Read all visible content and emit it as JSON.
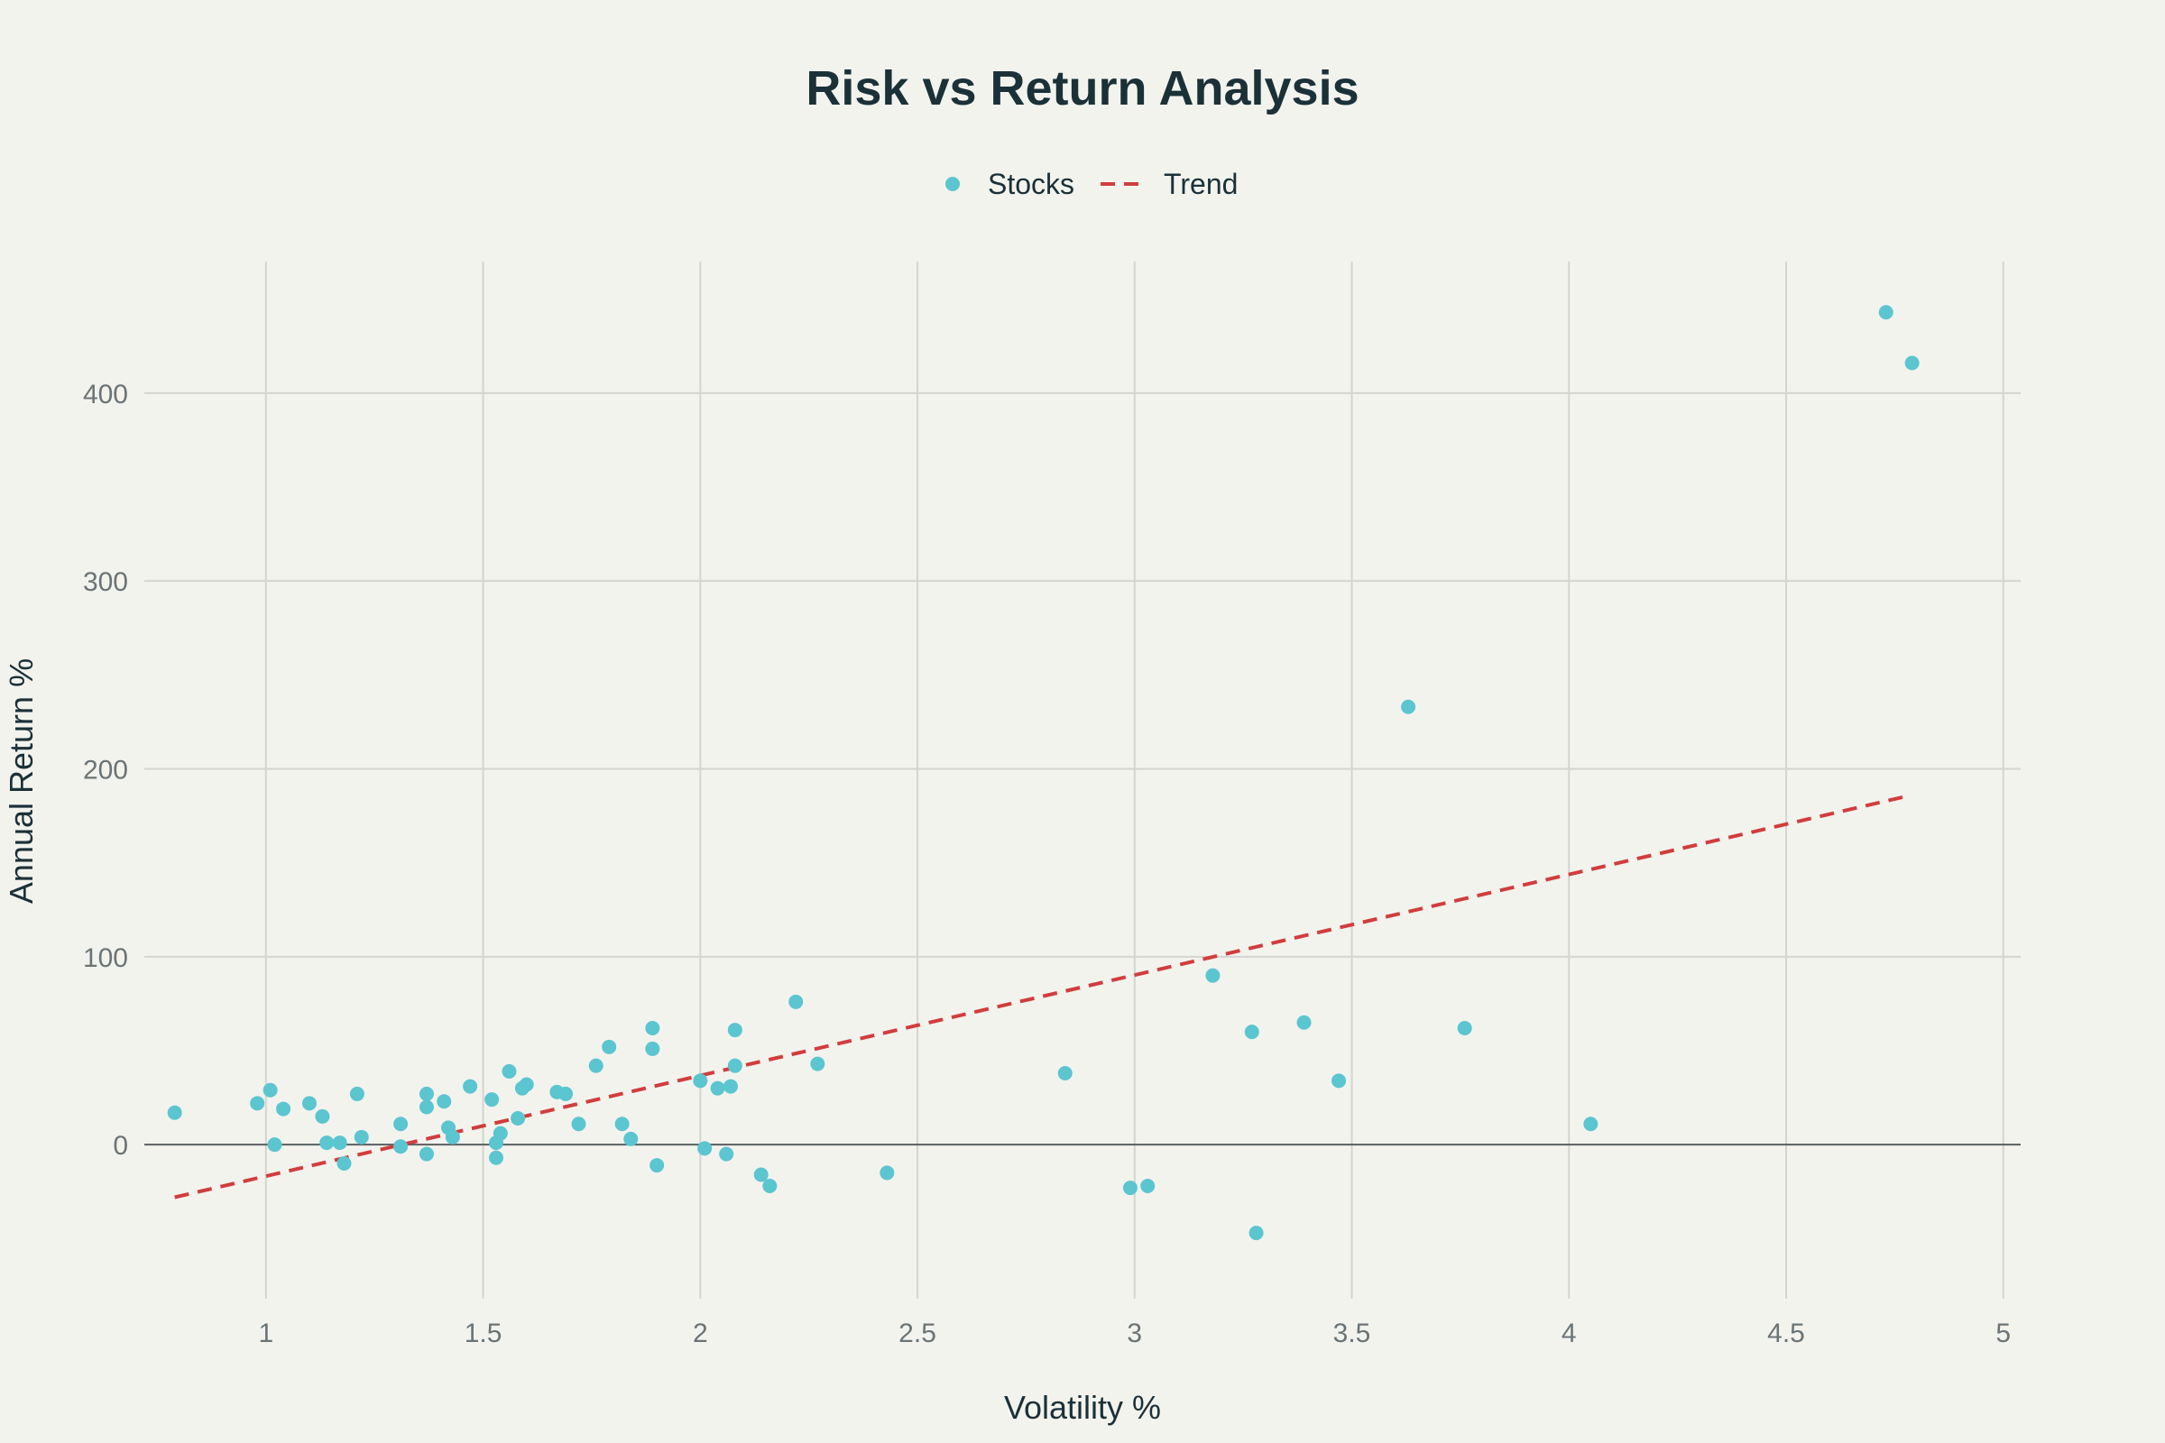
{
  "chart_data": {
    "type": "scatter",
    "title": "Risk vs Return Analysis",
    "xlabel": "Volatility %",
    "ylabel": "Annual Return %",
    "xlim": [
      0.72,
      5.04
    ],
    "ylim": [
      -82,
      470
    ],
    "xticks": [
      1,
      1.5,
      2,
      2.5,
      3,
      3.5,
      4,
      4.5,
      5
    ],
    "yticks": [
      0,
      100,
      200,
      300,
      400
    ],
    "grid": true,
    "legend_position": "top-center",
    "series": [
      {
        "name": "Stocks",
        "mode": "markers",
        "color": "#5bc5d0",
        "points": [
          [
            0.79,
            17
          ],
          [
            0.98,
            22
          ],
          [
            1.01,
            29
          ],
          [
            1.02,
            0
          ],
          [
            1.04,
            19
          ],
          [
            1.1,
            22
          ],
          [
            1.13,
            15
          ],
          [
            1.14,
            1
          ],
          [
            1.17,
            1
          ],
          [
            1.18,
            -10
          ],
          [
            1.21,
            27
          ],
          [
            1.22,
            4
          ],
          [
            1.31,
            11
          ],
          [
            1.31,
            -1
          ],
          [
            1.37,
            27
          ],
          [
            1.37,
            20
          ],
          [
            1.37,
            -5
          ],
          [
            1.41,
            23
          ],
          [
            1.42,
            9
          ],
          [
            1.43,
            4
          ],
          [
            1.47,
            31
          ],
          [
            1.52,
            24
          ],
          [
            1.53,
            1
          ],
          [
            1.53,
            -7
          ],
          [
            1.54,
            6
          ],
          [
            1.56,
            39
          ],
          [
            1.58,
            14
          ],
          [
            1.59,
            30
          ],
          [
            1.6,
            32
          ],
          [
            1.67,
            28
          ],
          [
            1.69,
            27
          ],
          [
            1.72,
            11
          ],
          [
            1.76,
            42
          ],
          [
            1.79,
            52
          ],
          [
            1.82,
            11
          ],
          [
            1.84,
            3
          ],
          [
            1.89,
            62
          ],
          [
            1.89,
            51
          ],
          [
            1.9,
            -11
          ],
          [
            2.0,
            34
          ],
          [
            2.01,
            -2
          ],
          [
            2.04,
            30
          ],
          [
            2.06,
            -5
          ],
          [
            2.07,
            31
          ],
          [
            2.08,
            61
          ],
          [
            2.08,
            42
          ],
          [
            2.14,
            -16
          ],
          [
            2.16,
            -22
          ],
          [
            2.22,
            76
          ],
          [
            2.27,
            43
          ],
          [
            2.43,
            -15
          ],
          [
            2.84,
            38
          ],
          [
            2.99,
            -23
          ],
          [
            3.03,
            -22
          ],
          [
            3.18,
            90
          ],
          [
            3.27,
            60
          ],
          [
            3.28,
            -47
          ],
          [
            3.39,
            65
          ],
          [
            3.47,
            34
          ],
          [
            3.63,
            233
          ],
          [
            3.76,
            62
          ],
          [
            4.05,
            11
          ],
          [
            4.73,
            443
          ],
          [
            4.79,
            416
          ]
        ]
      },
      {
        "name": "Trend",
        "mode": "line",
        "color": "#d13d3d",
        "points": [
          [
            0.79,
            -28
          ],
          [
            4.77,
            185
          ]
        ]
      }
    ]
  }
}
